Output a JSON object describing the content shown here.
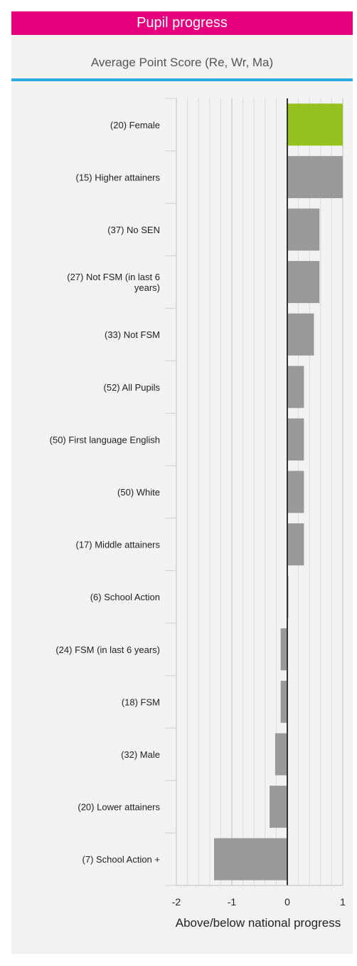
{
  "header": {
    "title": "Pupil progress"
  },
  "chart_data": {
    "type": "bar",
    "orientation": "horizontal",
    "title": "Average Point Score (Re, Wr, Ma)",
    "xlabel": "Above/below national progress",
    "ylabel": "",
    "xlim": [
      -2,
      1
    ],
    "xticks": [
      "-2",
      "-1",
      "0",
      "1"
    ],
    "grid": true,
    "categories": [
      "(20) Female",
      "(15) Higher attainers",
      "(37) No SEN",
      "(27) Not FSM (in last 6 years)",
      "(33) Not FSM",
      "(52) All Pupils",
      "(50) First language English",
      "(50) White",
      "(17) Middle attainers",
      "(6) School Action",
      "(24) FSM (in last 6 years)",
      "(18) FSM",
      "(32) Male",
      "(20) Lower attainers",
      "(7) School Action +"
    ],
    "label_lines": [
      [
        "(20) Female"
      ],
      [
        "(15) Higher attainers"
      ],
      [
        "(37) No SEN"
      ],
      [
        "(27) Not FSM (in last 6",
        "years)"
      ],
      [
        "(33) Not FSM"
      ],
      [
        "(52) All Pupils"
      ],
      [
        "(50) First language English"
      ],
      [
        "(50) White"
      ],
      [
        "(17) Middle attainers"
      ],
      [
        "(6) School Action"
      ],
      [
        "(24) FSM (in last 6 years)"
      ],
      [
        "(18) FSM"
      ],
      [
        "(32) Male"
      ],
      [
        "(20) Lower attainers"
      ],
      [
        "(7) School Action +"
      ]
    ],
    "values": [
      1.0,
      1.0,
      0.58,
      0.58,
      0.48,
      0.3,
      0.3,
      0.3,
      0.3,
      0.02,
      -0.12,
      -0.12,
      -0.22,
      -0.32,
      -1.32
    ],
    "highlight_index": 0,
    "colors": {
      "highlight": "#95c11f",
      "bar": "#999999",
      "grid": "#d9d9d9",
      "major_grid": "#bfbfbf",
      "axis": "#333333"
    }
  }
}
